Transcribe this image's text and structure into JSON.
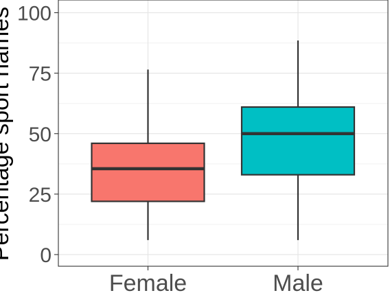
{
  "chart_data": {
    "type": "boxplot",
    "title": "",
    "xlabel": "",
    "ylabel": "Percentage sport names",
    "ylim": [
      0,
      100
    ],
    "yticks": [
      0,
      25,
      50,
      75,
      100
    ],
    "grid": true,
    "categories": [
      "Female",
      "Male"
    ],
    "boxes": [
      {
        "category": "Female",
        "min": 6,
        "q1": 22,
        "median": 35.5,
        "q3": 46,
        "max": 76.5,
        "color": "#F8766D"
      },
      {
        "category": "Male",
        "min": 6,
        "q1": 33,
        "median": 50,
        "q3": 61,
        "max": 88.5,
        "color": "#00BFC4"
      }
    ]
  }
}
